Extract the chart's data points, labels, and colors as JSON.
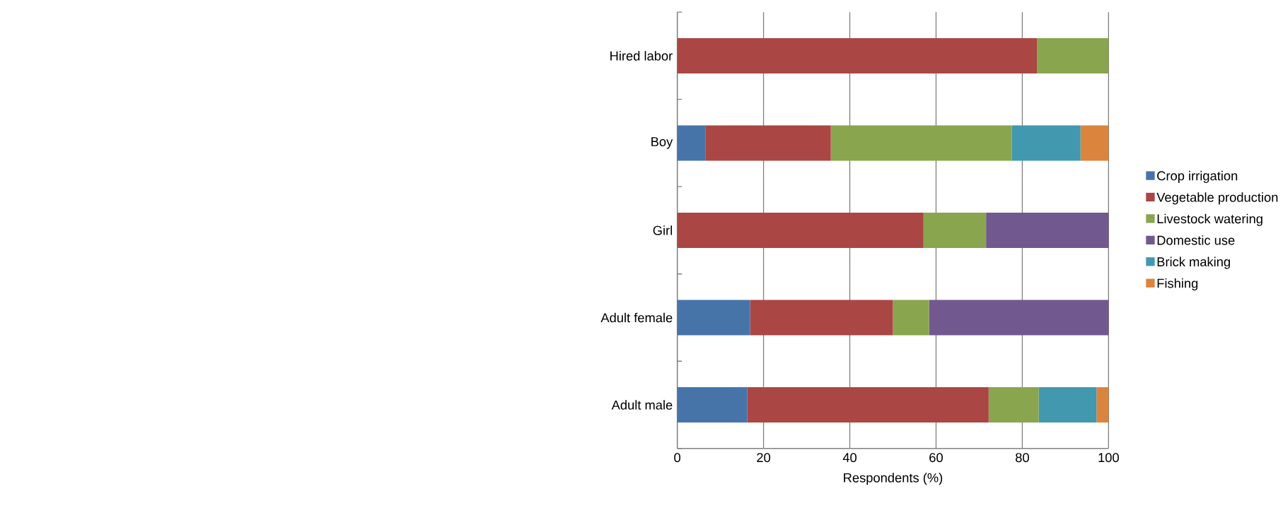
{
  "chart_data": {
    "type": "bar",
    "orientation": "horizontal",
    "stacked": true,
    "xlabel": "Respondents (%)",
    "categories": [
      "Hired labor",
      "Boy",
      "Girl",
      "Adult female",
      "Adult male"
    ],
    "series": [
      {
        "name": "Crop irrigation",
        "color": "#4674a9",
        "values": [
          0,
          6.5,
          0,
          16.9,
          16.2
        ]
      },
      {
        "name": "Vegetable production",
        "color": "#aa4744",
        "values": [
          83.4,
          29.1,
          57.1,
          33.1,
          56.0
        ]
      },
      {
        "name": "Livestock watering",
        "color": "#89a54e",
        "values": [
          16.6,
          42.0,
          14.5,
          8.4,
          11.6
        ]
      },
      {
        "name": "Domestic use",
        "color": "#71588f",
        "values": [
          0,
          0,
          28.4,
          41.6,
          0
        ]
      },
      {
        "name": "Brick making",
        "color": "#4198af",
        "values": [
          0,
          15.9,
          0,
          0,
          13.4
        ]
      },
      {
        "name": "Fishing",
        "color": "#db843d",
        "values": [
          0,
          6.5,
          0,
          0,
          2.8
        ]
      }
    ],
    "xlim": [
      0,
      100
    ],
    "xticks": [
      0,
      20,
      40,
      60,
      80,
      100
    ],
    "grid": "x",
    "legend": "right"
  }
}
